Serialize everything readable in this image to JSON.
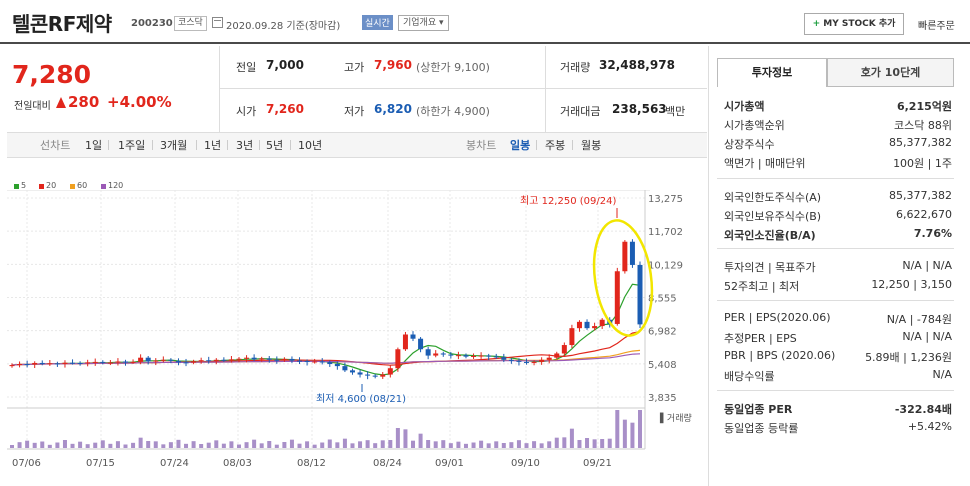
{
  "header": {
    "title": "텔콘RF제약",
    "code": "200230",
    "market": "코스닥",
    "date": "2020.09.28 기준(장마감)",
    "realtime": "실시간",
    "overview": "기업개요",
    "mystock": "MY STOCK 추가",
    "quick_order": "빠른주문"
  },
  "price": {
    "current": "7,280",
    "change_label": "전일대비",
    "change": "280",
    "change_pct": "+4.00%"
  },
  "quotes": {
    "prev_label": "전일",
    "prev": "7,000",
    "high_label": "고가",
    "high": "7,960",
    "upper_limit": "(상한가 9,100)",
    "volume_label": "거래량",
    "volume": "32,488,978",
    "open_label": "시가",
    "open": "7,260",
    "low_label": "저가",
    "low": "6,820",
    "lower_limit": "(하한가 4,900)",
    "amount_label": "거래대금",
    "amount": "238,563",
    "amount_unit": "백만"
  },
  "period_bar": {
    "line_label": "선차트",
    "periods": [
      "1일",
      "1주일",
      "3개월",
      "1년",
      "3년",
      "5년",
      "10년"
    ],
    "candle_label": "봉차트",
    "candle_periods": [
      "일봉",
      "주봉",
      "월봉"
    ],
    "active": "일봉"
  },
  "legend": [
    "5",
    "20",
    "60",
    "120"
  ],
  "legend_colors": [
    "#2ca02c",
    "#e1261c",
    "#f0a020",
    "#9b59b6"
  ],
  "chart_data": {
    "type": "candlestick",
    "y_ticks": [
      "13,275",
      "11,702",
      "10,129",
      "8,555",
      "6,982",
      "5,408",
      "3,835"
    ],
    "x_ticks": [
      "07/06",
      "07/15",
      "07/24",
      "08/03",
      "08/12",
      "08/24",
      "09/01",
      "09/10",
      "09/21"
    ],
    "max_label": "최고 12,250 (09/24)",
    "min_label": "최저 4,600 (08/21)",
    "volume_label": "거래량",
    "ylim": [
      3835,
      13275
    ]
  },
  "panel": {
    "tabs": [
      "투자정보",
      "호가 10단계"
    ],
    "rows1": [
      {
        "label": "시가총액",
        "value": "6,215억원",
        "bold": true
      },
      {
        "label": "시가총액순위",
        "value": "코스닥 88위"
      },
      {
        "label": "상장주식수",
        "value": "85,377,382"
      },
      {
        "label": "액면가 | 매매단위",
        "value": "100원 | 1주"
      }
    ],
    "rows2": [
      {
        "label": "외국인한도주식수(A)",
        "value": "85,377,382"
      },
      {
        "label": "외국인보유주식수(B)",
        "value": "6,622,670"
      },
      {
        "label": "외국인소진율(B/A)",
        "value": "7.76%",
        "bold": true
      }
    ],
    "rows3": [
      {
        "label": "투자의견 | 목표주가",
        "value": "N/A | N/A"
      },
      {
        "label": "52주최고 | 최저",
        "value": "12,250 | 3,150"
      }
    ],
    "rows4": [
      {
        "label": "PER | EPS(2020.06)",
        "value": "N/A | -784원"
      },
      {
        "label": "추정PER | EPS",
        "value": "N/A | N/A"
      },
      {
        "label": "PBR | BPS (2020.06)",
        "value": "5.89배 | 1,236원"
      },
      {
        "label": "배당수익률",
        "value": "N/A"
      }
    ],
    "rows5": [
      {
        "label": "동일업종 PER",
        "value": "-322.84배",
        "bold": true
      },
      {
        "label": "동일업종 등락률",
        "value": "+5.42%",
        "red": true
      }
    ]
  }
}
